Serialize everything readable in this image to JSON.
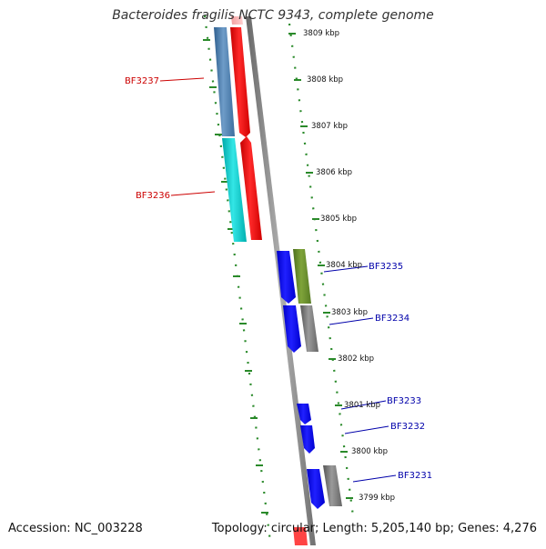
{
  "title": "Bacteroides fragilis NCTC 9343, complete genome",
  "footer": {
    "accession": "Accession: NC_003228",
    "topology": "Topology: circular; Length: 5,205,140 bp; Genes: 4,276"
  },
  "colors": {
    "scale_ticks": "#2a8a2a",
    "backbone": "#8c8c8c",
    "reverse_label": "#cc0000",
    "forward_label": "#0000aa"
  },
  "scale_labels": [
    "3809 kbp",
    "3808 kbp",
    "3807 kbp",
    "3806 kbp",
    "3805 kbp",
    "3804 kbp",
    "3803 kbp",
    "3802 kbp",
    "3801 kbp",
    "3800 kbp",
    "3799 kbp"
  ],
  "gene_labels": {
    "reverse": [
      "BF3237",
      "BF3236"
    ],
    "forward": [
      "BF3235",
      "BF3234",
      "BF3233",
      "BF3232",
      "BF3231"
    ]
  }
}
